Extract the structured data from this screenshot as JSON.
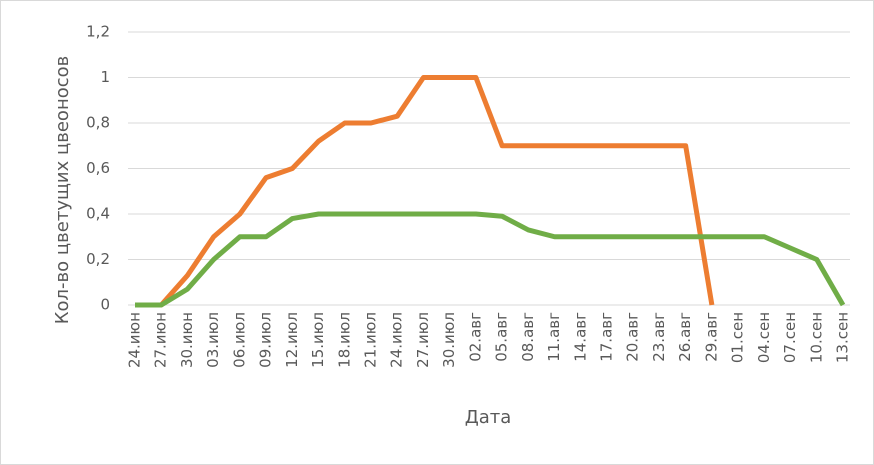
{
  "chart_data": {
    "type": "line",
    "x_label": "Дата",
    "y_label": "Кол-во цветущих цвеоносов",
    "categories": [
      "24.июн",
      "27.июн",
      "30.июн",
      "03.июл",
      "06.июл",
      "09.июл",
      "12.июл",
      "15.июл",
      "18.июл",
      "21.июл",
      "24.июл",
      "27.июл",
      "30.июл",
      "02.авг",
      "05.авг",
      "08.авг",
      "11.авг",
      "14.авг",
      "17.авг",
      "20.авг",
      "23.авг",
      "26.авг",
      "29.авг",
      "01.сен",
      "04.сен",
      "07.сен",
      "10.сен",
      "13.сен"
    ],
    "series": [
      {
        "color": "#ed7d31",
        "values": [
          0,
          0,
          0.13,
          0.3,
          0.4,
          0.56,
          0.6,
          0.72,
          0.8,
          0.8,
          0.83,
          1,
          1,
          1,
          0.7,
          0.7,
          0.7,
          0.7,
          0.7,
          0.7,
          0.7,
          0.7,
          0,
          null,
          null,
          null,
          null,
          null
        ]
      },
      {
        "color": "#70ad47",
        "values": [
          0,
          0,
          0.07,
          0.2,
          0.3,
          0.3,
          0.38,
          0.4,
          0.4,
          0.4,
          0.4,
          0.4,
          0.4,
          0.4,
          0.39,
          0.33,
          0.3,
          0.3,
          0.3,
          0.3,
          0.3,
          0.3,
          0.3,
          0.3,
          0.3,
          0.25,
          0.2,
          0
        ]
      }
    ],
    "ylim": [
      0,
      1.2
    ],
    "yticks": [
      0,
      {
        "value": 0.2,
        "label": "0,2"
      },
      {
        "value": 0.4,
        "label": "0,4"
      },
      {
        "value": 0.6,
        "label": "0,6"
      },
      {
        "value": 0.8,
        "label": "0,8"
      },
      1,
      {
        "value": 1.2,
        "label": "1,2"
      }
    ],
    "grid": true
  }
}
